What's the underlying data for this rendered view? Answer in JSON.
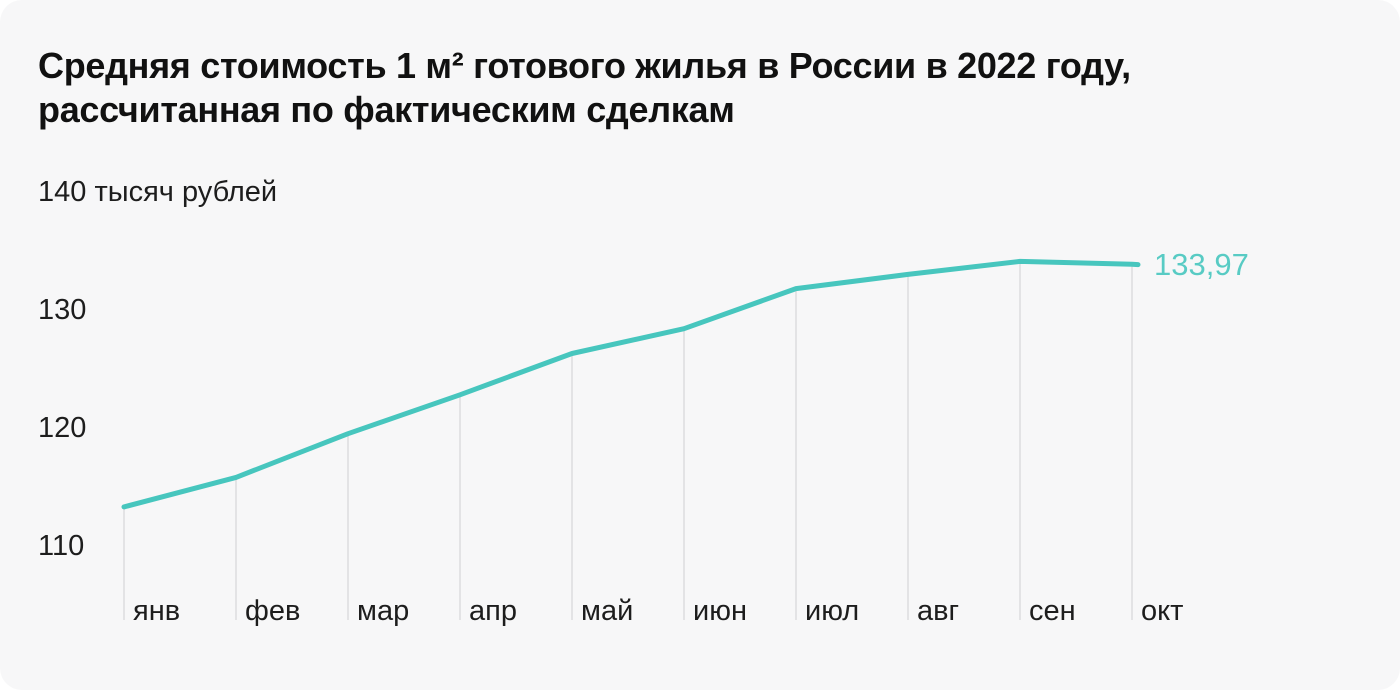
{
  "chart_data": {
    "type": "line",
    "title": "Средняя стоимость 1 м² готового жилья в России в 2022 году, рассчитанная по фактическим сделкам",
    "unit_label": "140 тысяч рублей",
    "categories": [
      "янв",
      "фев",
      "мар",
      "апр",
      "май",
      "июн",
      "июл",
      "авг",
      "сен",
      "окт"
    ],
    "values": [
      113.4,
      115.9,
      119.6,
      122.9,
      126.4,
      128.5,
      131.9,
      133.1,
      134.2,
      133.97
    ],
    "end_label": "133,97",
    "y_ticks": [
      "130",
      "120",
      "110"
    ],
    "y_tick_values": [
      130,
      120,
      110
    ],
    "ylim": [
      106,
      140
    ],
    "xlabel": "",
    "ylabel": "тысяч рублей",
    "legend": "none",
    "grid": "vertical-drop-lines-below-curve",
    "colors": {
      "line": "#47c6be",
      "end_label": "#58cbc4",
      "grid": "#e3e3e5",
      "background": "#f7f7f8",
      "title": "#111111",
      "axis_text": "#1d1d1d"
    }
  }
}
